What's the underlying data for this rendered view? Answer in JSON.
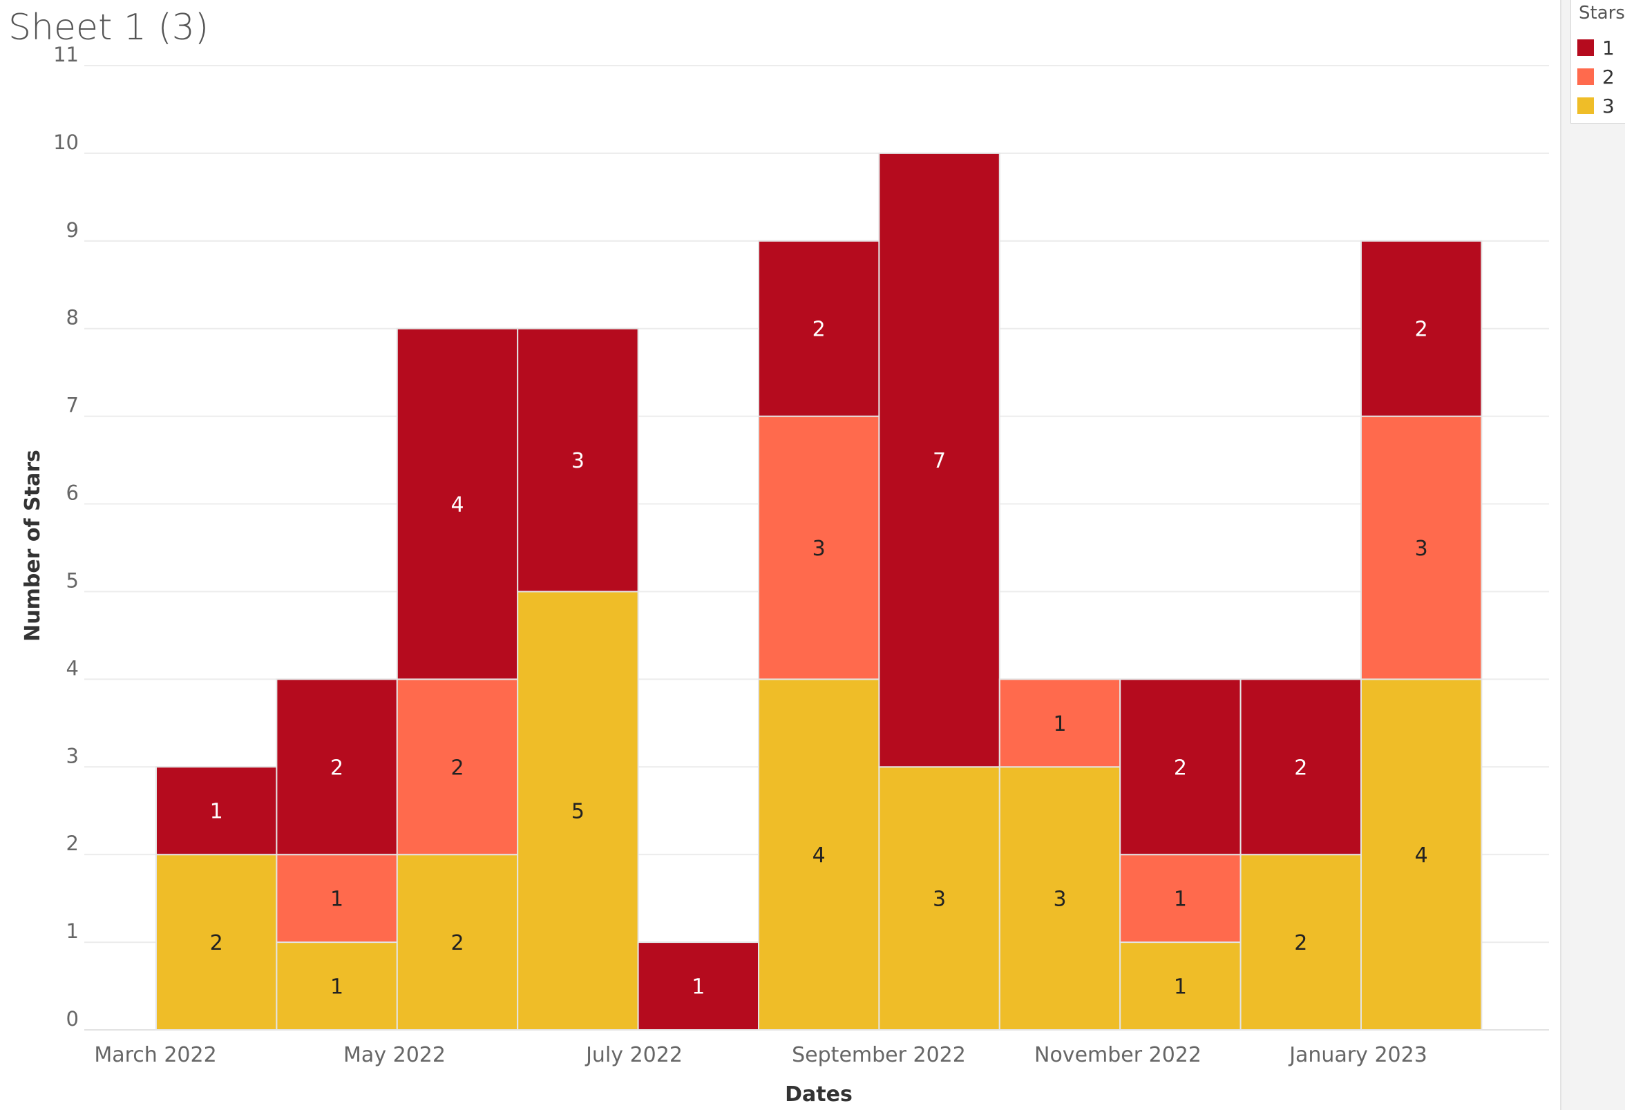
{
  "title": "Sheet 1 (3)",
  "legend": {
    "title": "Stars",
    "items": [
      {
        "label": "1",
        "color": "#b50b1e"
      },
      {
        "label": "2",
        "color": "#ff6a4d"
      },
      {
        "label": "3",
        "color": "#efbd28"
      }
    ]
  },
  "chart_data": {
    "type": "bar",
    "stacked": true,
    "xlabel": "Dates",
    "ylabel": "Number of Stars",
    "ylim": [
      0,
      11
    ],
    "yticks": [
      "0",
      "1",
      "2",
      "3",
      "4",
      "5",
      "6",
      "7",
      "8",
      "9",
      "10",
      "11"
    ],
    "x_tick_labels": [
      "March 2022",
      "May 2022",
      "July 2022",
      "September 2022",
      "November 2022",
      "January 2023"
    ],
    "categories": [
      "2022-03",
      "2022-04",
      "2022-05",
      "2022-06",
      "2022-07",
      "2022-08",
      "2022-09",
      "2022-10",
      "2022-11",
      "2022-12",
      "2023-01"
    ],
    "series": [
      {
        "name": "3",
        "color": "#efbd28",
        "values": [
          2,
          1,
          2,
          5,
          0,
          4,
          3,
          3,
          1,
          2,
          4
        ]
      },
      {
        "name": "2",
        "color": "#ff6a4d",
        "values": [
          0,
          1,
          2,
          0,
          0,
          3,
          0,
          1,
          1,
          0,
          3
        ]
      },
      {
        "name": "1",
        "color": "#b50b1e",
        "values": [
          1,
          2,
          4,
          3,
          1,
          2,
          7,
          0,
          2,
          2,
          2
        ]
      }
    ],
    "grid": true,
    "legend_position": "top-right",
    "data_labels": true
  }
}
